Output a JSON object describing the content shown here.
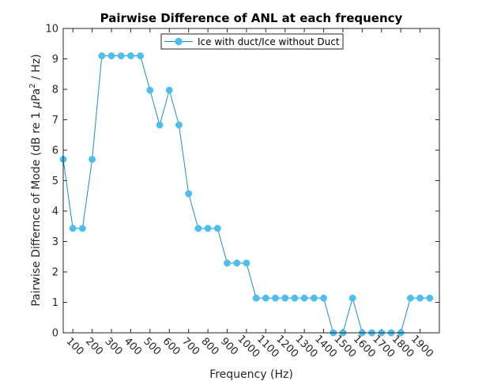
{
  "colors": {
    "series": "#4DBEEE",
    "series_line": "#1C8FC0",
    "axis": "#262626"
  },
  "chart_data": {
    "type": "line",
    "title": "Pairwise Difference of ANL at each frequency",
    "xlabel": "Frequency (Hz)",
    "ylabel_parts": [
      "Pairwise Differnce of Mode (dB re 1 ",
      "μ",
      "Pa",
      "2",
      " / Hz)"
    ],
    "xlim": [
      50,
      2000
    ],
    "ylim": [
      0,
      10
    ],
    "xticks": [
      100,
      200,
      300,
      400,
      500,
      600,
      700,
      800,
      900,
      1000,
      1100,
      1200,
      1300,
      1400,
      1500,
      1600,
      1700,
      1800,
      1900
    ],
    "yticks": [
      0,
      1,
      2,
      3,
      4,
      5,
      6,
      7,
      8,
      9,
      10
    ],
    "legend_position": "top-center",
    "series": [
      {
        "name": "Ice with duct/Ice without Duct",
        "x": [
          50,
          100,
          150,
          200,
          250,
          300,
          350,
          400,
          450,
          500,
          550,
          600,
          650,
          700,
          750,
          800,
          850,
          900,
          950,
          1000,
          1050,
          1100,
          1150,
          1200,
          1250,
          1300,
          1350,
          1400,
          1450,
          1500,
          1550,
          1600,
          1650,
          1700,
          1750,
          1800,
          1850,
          1900,
          1950
        ],
        "y": [
          5.7,
          3.43,
          3.43,
          5.7,
          9.1,
          9.1,
          9.1,
          9.1,
          9.1,
          7.97,
          6.83,
          7.97,
          6.83,
          4.57,
          3.43,
          3.43,
          3.43,
          2.29,
          2.29,
          2.29,
          1.14,
          1.14,
          1.14,
          1.14,
          1.14,
          1.14,
          1.14,
          1.14,
          0,
          0,
          1.14,
          0,
          0,
          0,
          0,
          0,
          1.14,
          1.14,
          1.14
        ]
      }
    ]
  }
}
